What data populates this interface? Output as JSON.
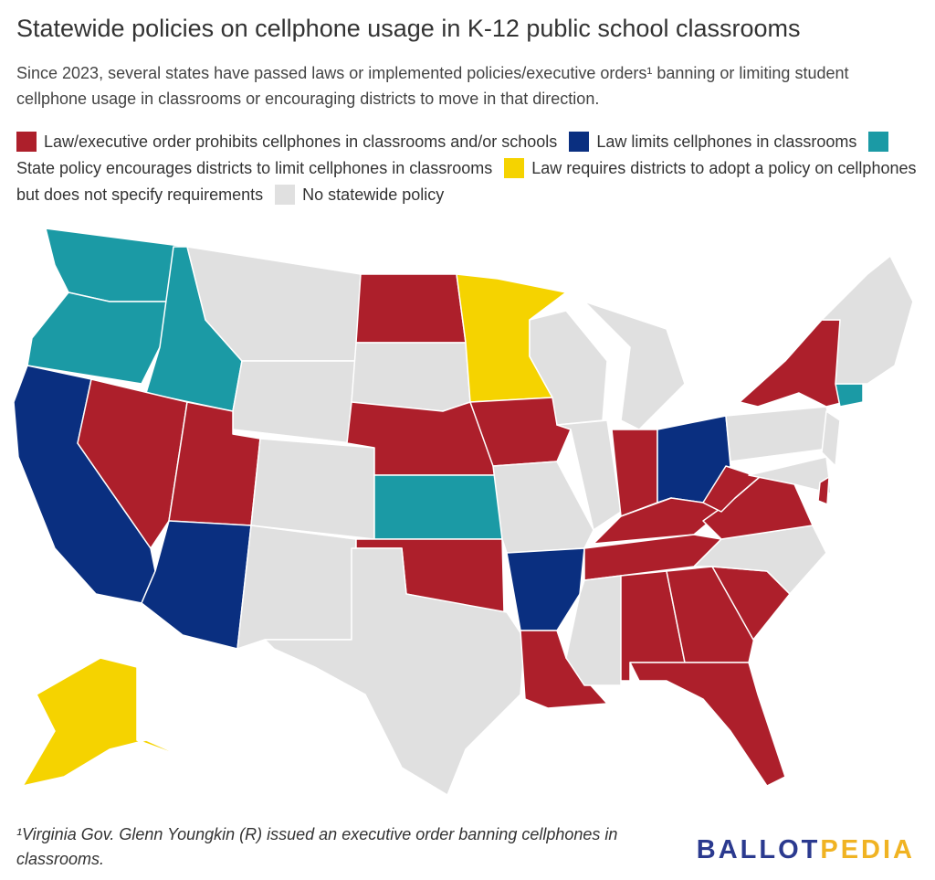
{
  "header": {
    "title": "Statewide policies on cellphone usage in K-12 public school classrooms",
    "subtitle": "Since 2023, several states have passed laws or implemented policies/executive orders¹ banning or limiting student cellphone usage in classrooms or encouraging districts to move in that direction."
  },
  "legend": [
    {
      "label": "Law/executive order prohibits cellphones in classrooms and/or schools",
      "color": "#ad1f2b"
    },
    {
      "label": "Law limits cellphones in classrooms",
      "color": "#0a2f80"
    },
    {
      "label": "State policy encourages districts to limit cellphones in classrooms",
      "color": "#1b9aa5"
    },
    {
      "label": "Law requires districts to adopt a policy on cellphones but does not specify requirements",
      "color": "#f5d300"
    },
    {
      "label": "No statewide policy",
      "color": "#e0e0e0"
    }
  ],
  "footnote": "¹Virginia Gov. Glenn Youngkin (R) issued an executive order banning cellphones in classrooms.",
  "logo": {
    "first": "BALLOT",
    "second": "PEDIA"
  }
}
